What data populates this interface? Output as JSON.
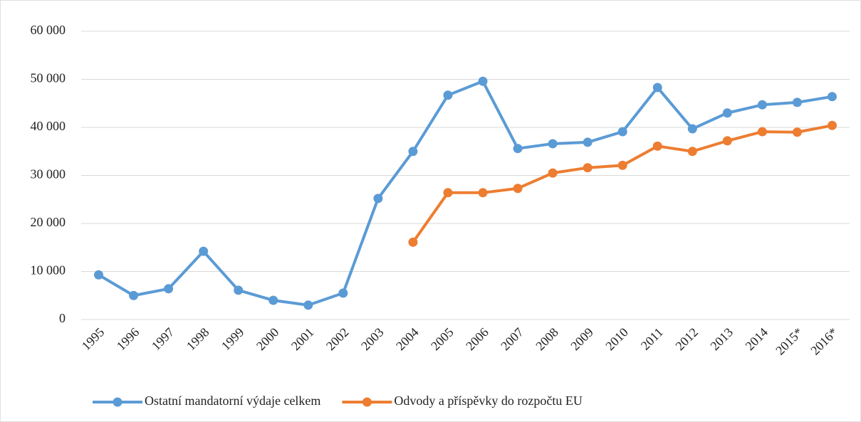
{
  "chart_data": {
    "type": "line",
    "categories": [
      "1995",
      "1996",
      "1997",
      "1998",
      "1999",
      "2000",
      "2001",
      "2002",
      "2003",
      "2004",
      "2005",
      "2006",
      "2007",
      "2008",
      "2009",
      "2010",
      "2011",
      "2012",
      "2013",
      "2014",
      "2015*",
      "2016*"
    ],
    "series": [
      {
        "name": "Ostatní mandatorní výdaje celkem",
        "color": "#5b9bd5",
        "values": [
          9300,
          5000,
          6400,
          14200,
          6100,
          4000,
          3000,
          5500,
          25200,
          35000,
          46700,
          49600,
          35600,
          36600,
          36900,
          39100,
          48300,
          39700,
          43000,
          44700,
          45200,
          46400
        ]
      },
      {
        "name": "Odvody a příspěvky do rozpočtu EU",
        "color": "#ed7d31",
        "values": [
          null,
          null,
          null,
          null,
          null,
          null,
          null,
          null,
          null,
          16100,
          26400,
          26400,
          27300,
          30500,
          31600,
          32100,
          36100,
          35000,
          37200,
          39100,
          39000,
          40400
        ]
      }
    ],
    "ylim": [
      0,
      60000
    ],
    "yticks": [
      0,
      {
        "value": 10000,
        "label": "10 000"
      },
      {
        "value": 20000,
        "label": "20 000"
      },
      {
        "value": 30000,
        "label": "30 000"
      },
      {
        "value": 40000,
        "label": "40 000"
      },
      {
        "value": 50000,
        "label": "50 000"
      },
      {
        "value": 60000,
        "label": "60 000"
      }
    ],
    "grid": true,
    "legend": "bottom"
  }
}
